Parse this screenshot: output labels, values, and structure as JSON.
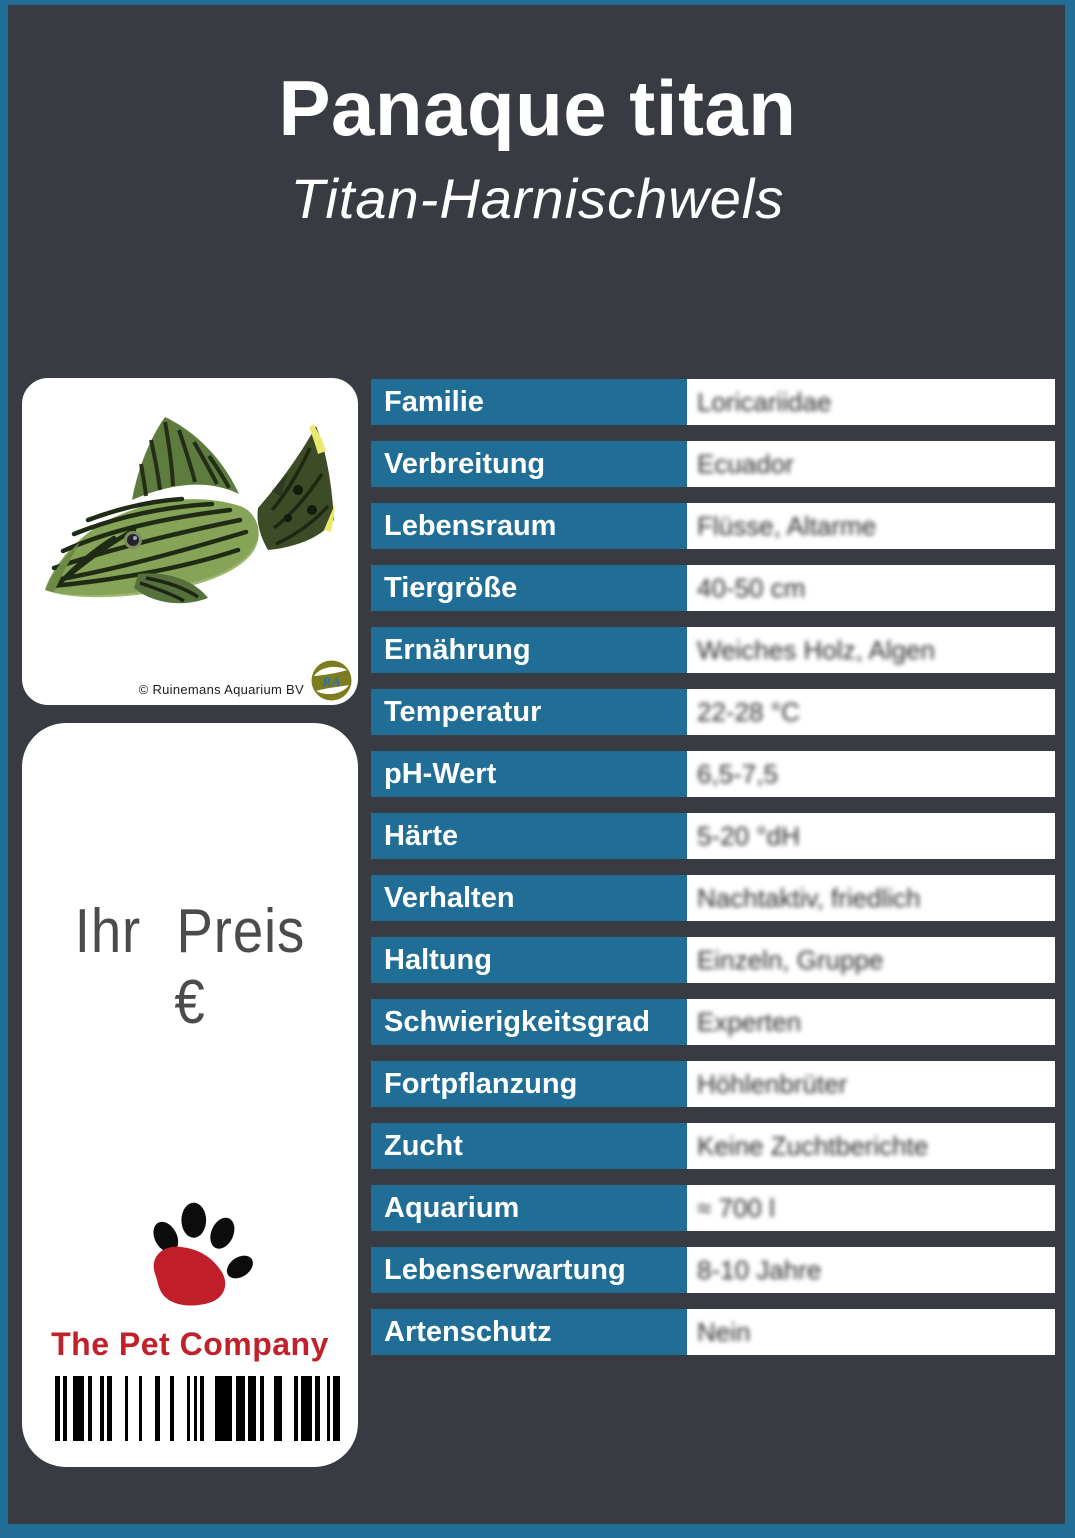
{
  "card": {
    "title": "Panaque titan",
    "subtitle": "Titan-Harnischwels",
    "colors": {
      "border_blue": "#206E96",
      "cell_blue": "#206E96",
      "background_dark": "#383B42",
      "brand_red": "#C2202A",
      "price_gray": "#4B4B4B"
    }
  },
  "photo": {
    "credit": "© Ruinemans Aquarium BV",
    "credit_logo_text": "RA"
  },
  "price": {
    "label": "Ihr Preis €"
  },
  "brand": {
    "name": "The Pet Company"
  },
  "table": {
    "rows": [
      {
        "label": "Familie",
        "value": "Loricariidae"
      },
      {
        "label": "Verbreitung",
        "value": "Ecuador"
      },
      {
        "label": "Lebensraum",
        "value": "Flüsse, Altarme"
      },
      {
        "label": "Tiergröße",
        "value": "40-50 cm"
      },
      {
        "label": "Ernährung",
        "value": "Weiches Holz, Algen"
      },
      {
        "label": "Temperatur",
        "value": "22-28 °C"
      },
      {
        "label": "pH-Wert",
        "value": "6,5-7,5"
      },
      {
        "label": "Härte",
        "value": "5-20 °dH"
      },
      {
        "label": "Verhalten",
        "value": "Nachtaktiv, friedlich"
      },
      {
        "label": "Haltung",
        "value": "Einzeln, Gruppe"
      },
      {
        "label": "Schwierigkeitsgrad",
        "value": "Experten"
      },
      {
        "label": "Fortpflanzung",
        "value": "Höhlenbrüter"
      },
      {
        "label": "Zucht",
        "value": "Keine Zuchtberichte"
      },
      {
        "label": "Aquarium",
        "value": "≈ 700 l"
      },
      {
        "label": "Lebenserwartung",
        "value": "8-10 Jahre"
      },
      {
        "label": "Artenschutz",
        "value": "Nein"
      }
    ]
  },
  "barcode": {
    "bars": [
      [
        5,
        3
      ],
      [
        4,
        6
      ],
      [
        11,
        4
      ],
      [
        4,
        8
      ],
      [
        4,
        3
      ],
      [
        5,
        13
      ],
      [
        3,
        11
      ],
      [
        3,
        13
      ],
      [
        5,
        10
      ],
      [
        4,
        13
      ],
      [
        3,
        4
      ],
      [
        3,
        3
      ],
      [
        4,
        11
      ],
      [
        17,
        4
      ],
      [
        9,
        3
      ],
      [
        8,
        4
      ],
      [
        4,
        10
      ],
      [
        8,
        12
      ],
      [
        4,
        3
      ],
      [
        11,
        3
      ],
      [
        5,
        7
      ],
      [
        3,
        3
      ],
      [
        11,
        0
      ]
    ]
  }
}
